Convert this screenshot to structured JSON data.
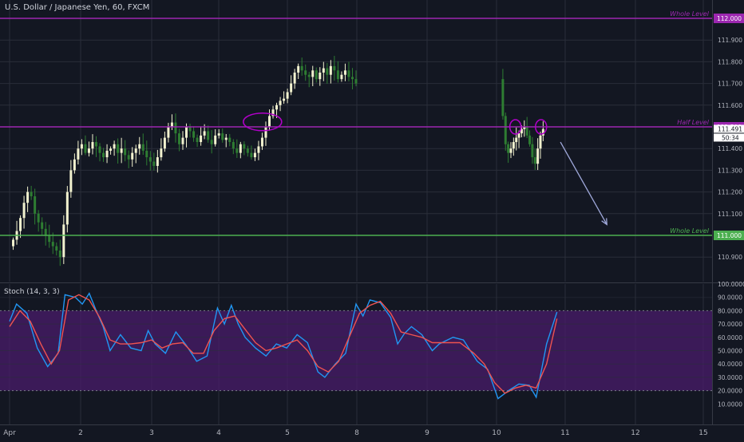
{
  "header": {
    "symbol_title": "U.S. Dollar / Japanese Yen, 60, FXCM"
  },
  "colors": {
    "background": "#131722",
    "grid": "#2a2e39",
    "up_candle": "#f2f2cf",
    "down_candle": "#2e7d32",
    "purple_line": "#9c27b0",
    "green_line": "#4caf50",
    "stoch_k": "#2196f3",
    "stoch_d": "#ef5350",
    "stoch_band": "#4a1c6b",
    "drawing": "#b000c8",
    "arrow": "#9fa8da"
  },
  "chart_data": [
    {
      "type": "line",
      "title": "U.S. Dollar / Japanese Yen, 60, FXCM",
      "ylim": [
        110.87,
        112.05
      ],
      "yticks": [
        "111.900",
        "111.800",
        "111.700",
        "111.600",
        "111.400",
        "111.300",
        "111.200",
        "111.100",
        "110.900"
      ],
      "x_tick_labels": [
        "Apr",
        "2",
        "3",
        "4",
        "5",
        "8",
        "9",
        "10",
        "11",
        "12",
        "15"
      ],
      "price_labels": {
        "whole_top": "112.000",
        "half": "111.500",
        "current": "111.491",
        "countdown": "50:34",
        "whole_bottom": "111.000"
      },
      "level_texts": {
        "whole_top": "Whole Level",
        "half": "Half Level",
        "whole_bottom": "Whole  Level"
      },
      "levels": {
        "whole_top": 112.0,
        "half": 111.5,
        "whole_bottom": 111.0
      },
      "segments": [
        {
          "start_day": 0.0,
          "prices": [
            110.95,
            110.98,
            111.02,
            111.08,
            111.15,
            111.2,
            111.18,
            111.1,
            111.06,
            111.03,
            111.0,
            110.97,
            110.95,
            110.93,
            110.9,
            111.05,
            111.2,
            111.3,
            111.35,
            111.4,
            111.42,
            111.38,
            111.4,
            111.43,
            111.41,
            111.38,
            111.36,
            111.39,
            111.4,
            111.42,
            111.38,
            111.4,
            111.37,
            111.35,
            111.38,
            111.4,
            111.42,
            111.39,
            111.36,
            111.34,
            111.32,
            111.36,
            111.4,
            111.45,
            111.5,
            111.52,
            111.47,
            111.42,
            111.45,
            111.5,
            111.48,
            111.45,
            111.43,
            111.46,
            111.48,
            111.44,
            111.42,
            111.46,
            111.47,
            111.44,
            111.45,
            111.43,
            111.4,
            111.38,
            111.42,
            111.4,
            111.38,
            111.36,
            111.38,
            111.41,
            111.45,
            111.5,
            111.55,
            111.58,
            111.6,
            111.62,
            111.63,
            111.66,
            111.7,
            111.75,
            111.78,
            111.76,
            111.74,
            111.73,
            111.76,
            111.72,
            111.75,
            111.77,
            111.74,
            111.78,
            111.76,
            111.72,
            111.74,
            111.76,
            111.73,
            111.72,
            111.7
          ]
        },
        {
          "start_day": 7.08,
          "prices": [
            111.72,
            111.55,
            111.42,
            111.38,
            111.4,
            111.43,
            111.45,
            111.47,
            111.49,
            111.5,
            111.46,
            111.42,
            111.36,
            111.33,
            111.4,
            111.46,
            111.49
          ]
        }
      ],
      "annotations": [
        {
          "kind": "ellipse",
          "day": 3.65,
          "price": 111.523
        },
        {
          "kind": "ellipse",
          "day": 7.3,
          "price": 111.5
        },
        {
          "kind": "ellipse",
          "day": 7.67,
          "price": 111.5
        },
        {
          "kind": "arrow",
          "from_day": 7.95,
          "from_price": 111.43,
          "to_day": 8.62,
          "to_price": 111.05
        }
      ]
    },
    {
      "type": "line",
      "title": "Stoch (14, 3, 3)",
      "ylim": [
        8,
        100
      ],
      "yticks": [
        "100.0000",
        "90.0000",
        "80.0000",
        "70.0000",
        "60.0000",
        "50.0000",
        "40.0000",
        "30.0000",
        "20.0000",
        "10.0000"
      ],
      "bands": [
        20,
        80
      ],
      "series": [
        {
          "name": "%K",
          "points": [
            [
              0,
              72
            ],
            [
              0.1,
              85
            ],
            [
              0.25,
              78
            ],
            [
              0.4,
              52
            ],
            [
              0.55,
              38
            ],
            [
              0.7,
              48
            ],
            [
              0.8,
              92
            ],
            [
              0.95,
              90
            ],
            [
              1.05,
              85
            ],
            [
              1.15,
              93
            ],
            [
              1.25,
              80
            ],
            [
              1.35,
              68
            ],
            [
              1.45,
              50
            ],
            [
              1.6,
              62
            ],
            [
              1.75,
              52
            ],
            [
              1.9,
              50
            ],
            [
              2.0,
              65
            ],
            [
              2.1,
              55
            ],
            [
              2.25,
              48
            ],
            [
              2.4,
              64
            ],
            [
              2.55,
              54
            ],
            [
              2.7,
              42
            ],
            [
              2.85,
              46
            ],
            [
              3.0,
              82
            ],
            [
              3.1,
              70
            ],
            [
              3.2,
              84
            ],
            [
              3.3,
              70
            ],
            [
              3.4,
              60
            ],
            [
              3.55,
              52
            ],
            [
              3.7,
              46
            ],
            [
              3.85,
              55
            ],
            [
              4.0,
              52
            ],
            [
              4.15,
              62
            ],
            [
              4.3,
              56
            ],
            [
              4.45,
              34
            ],
            [
              4.55,
              30
            ],
            [
              4.7,
              40
            ],
            [
              4.85,
              48
            ],
            [
              5.0,
              85
            ],
            [
              5.1,
              76
            ],
            [
              5.2,
              88
            ],
            [
              5.35,
              86
            ],
            [
              5.5,
              75
            ],
            [
              5.6,
              55
            ],
            [
              5.7,
              63
            ],
            [
              5.8,
              68
            ],
            [
              5.95,
              62
            ],
            [
              6.1,
              50
            ],
            [
              6.2,
              55
            ],
            [
              6.4,
              60
            ],
            [
              6.55,
              58
            ],
            [
              6.75,
              42
            ],
            [
              6.9,
              36
            ],
            [
              7.05,
              14
            ],
            [
              7.2,
              20
            ],
            [
              7.35,
              25
            ],
            [
              7.5,
              24
            ],
            [
              7.6,
              15
            ],
            [
              7.75,
              55
            ],
            [
              7.9,
              79
            ]
          ]
        },
        {
          "name": "%D",
          "points": [
            [
              0,
              68
            ],
            [
              0.15,
              80
            ],
            [
              0.3,
              72
            ],
            [
              0.45,
              55
            ],
            [
              0.6,
              40
            ],
            [
              0.72,
              50
            ],
            [
              0.85,
              88
            ],
            [
              1.0,
              92
            ],
            [
              1.15,
              88
            ],
            [
              1.3,
              75
            ],
            [
              1.45,
              58
            ],
            [
              1.6,
              55
            ],
            [
              1.75,
              55
            ],
            [
              1.9,
              56
            ],
            [
              2.05,
              58
            ],
            [
              2.2,
              52
            ],
            [
              2.35,
              55
            ],
            [
              2.5,
              56
            ],
            [
              2.65,
              48
            ],
            [
              2.8,
              48
            ],
            [
              2.95,
              65
            ],
            [
              3.1,
              74
            ],
            [
              3.25,
              76
            ],
            [
              3.4,
              66
            ],
            [
              3.55,
              56
            ],
            [
              3.7,
              50
            ],
            [
              3.85,
              52
            ],
            [
              4.0,
              55
            ],
            [
              4.15,
              58
            ],
            [
              4.3,
              50
            ],
            [
              4.45,
              38
            ],
            [
              4.6,
              34
            ],
            [
              4.75,
              42
            ],
            [
              4.9,
              60
            ],
            [
              5.05,
              78
            ],
            [
              5.2,
              84
            ],
            [
              5.35,
              87
            ],
            [
              5.5,
              78
            ],
            [
              5.65,
              64
            ],
            [
              5.8,
              62
            ],
            [
              5.95,
              60
            ],
            [
              6.1,
              56
            ],
            [
              6.3,
              56
            ],
            [
              6.5,
              56
            ],
            [
              6.7,
              48
            ],
            [
              6.85,
              40
            ],
            [
              7.0,
              26
            ],
            [
              7.15,
              18
            ],
            [
              7.3,
              22
            ],
            [
              7.45,
              24
            ],
            [
              7.6,
              22
            ],
            [
              7.75,
              40
            ],
            [
              7.9,
              74
            ]
          ]
        }
      ]
    }
  ]
}
